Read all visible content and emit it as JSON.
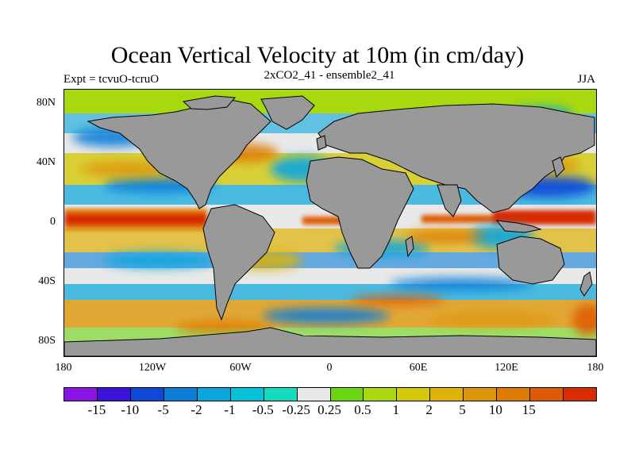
{
  "title": "Ocean Vertical Velocity at 10m (in cm/day)",
  "left_label": "Expt = tcvuO-tcruO",
  "center_label": "2xCO2_41 - ensemble2_41",
  "right_label": "JJA",
  "y_ticks": [
    "80N",
    "40N",
    "0",
    "40S",
    "80S"
  ],
  "x_ticks": [
    "180",
    "120W",
    "60W",
    "0",
    "60E",
    "120E",
    "180"
  ],
  "colorbar": {
    "colors": [
      "#8a13e6",
      "#3a12d8",
      "#0f48d8",
      "#0b7fd8",
      "#09a6de",
      "#05c2d8",
      "#11dcc0",
      "#e8e8e8",
      "#6ad60f",
      "#a8d80e",
      "#d4c90a",
      "#dfb206",
      "#de9608",
      "#df7a05",
      "#df5a05",
      "#d82c02"
    ],
    "labels": [
      "-15",
      "-10",
      "-5",
      "-2",
      "-1",
      "-0.5",
      "-0.25",
      "0.25",
      "0.5",
      "1",
      "2",
      "5",
      "10",
      "15"
    ]
  },
  "map_colors": {
    "land": "#999999",
    "ocean_neutral": "#e8e8e8",
    "outline": "#000000"
  }
}
